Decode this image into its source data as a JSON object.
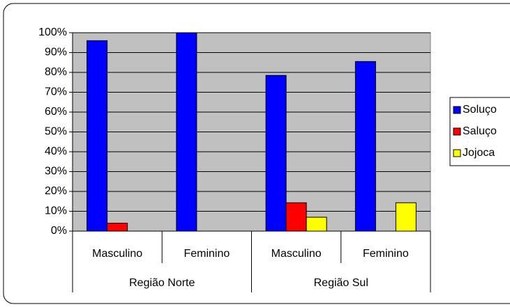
{
  "chart_data": {
    "type": "bar",
    "categories": [
      "Masculino",
      "Feminino",
      "Masculino",
      "Feminino"
    ],
    "groups": [
      "Região Norte",
      "Região Sul"
    ],
    "series": [
      {
        "name": "Soluço",
        "color": "#0000ff",
        "values": [
          96,
          100,
          78.5,
          85.5
        ]
      },
      {
        "name": "Saluço",
        "color": "#ff0000",
        "values": [
          4,
          0,
          14.3,
          0
        ]
      },
      {
        "name": "Jojoca",
        "color": "#ffff00",
        "values": [
          0,
          0,
          7,
          14.3
        ]
      }
    ],
    "ylim": [
      0,
      100
    ],
    "yticks": [
      {
        "value": 0,
        "label": "0%"
      },
      {
        "value": 10,
        "label": "10%"
      },
      {
        "value": 20,
        "label": "20%"
      },
      {
        "value": 30,
        "label": "30%"
      },
      {
        "value": 40,
        "label": "40%"
      },
      {
        "value": 50,
        "label": "50%"
      },
      {
        "value": 60,
        "label": "60%"
      },
      {
        "value": 70,
        "label": "70%"
      },
      {
        "value": 80,
        "label": "80%"
      },
      {
        "value": 90,
        "label": "90%"
      },
      {
        "value": 100,
        "label": "100%"
      }
    ],
    "grid": true,
    "legend": "right",
    "plot_background": "#c0c0c0"
  }
}
